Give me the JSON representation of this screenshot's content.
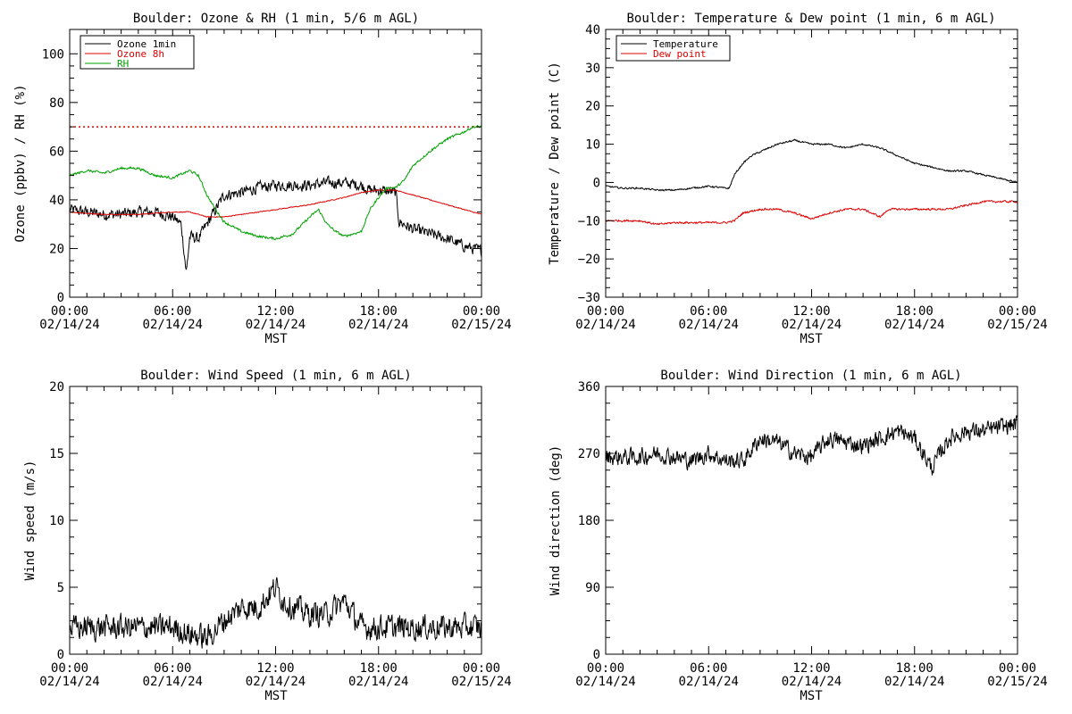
{
  "figure": {
    "x_tick_labels": [
      {
        "time": "00:00",
        "date": "02/14/24"
      },
      {
        "time": "06:00",
        "date": "02/14/24"
      },
      {
        "time": "12:00",
        "date": "02/14/24"
      },
      {
        "time": "18:00",
        "date": "02/14/24"
      },
      {
        "time": "00:00",
        "date": "02/15/24"
      }
    ],
    "x_axis_label": "MST"
  },
  "chart_data": [
    {
      "type": "line",
      "title": "Boulder: Ozone & RH (1 min, 5/6 m AGL)",
      "xlabel": "MST",
      "ylabel": "Ozone (ppbv) / RH (%)",
      "xlim_hours": [
        0,
        24
      ],
      "ylim": [
        0,
        110
      ],
      "yticks": [
        0,
        20,
        40,
        60,
        80,
        100
      ],
      "legend_position": "top-left",
      "reference_line": {
        "y": 70,
        "color": "#dd0000",
        "style": "dotted"
      },
      "series": [
        {
          "name": "Ozone 1min",
          "color": "#000000",
          "noise": 3.2,
          "points": [
            [
              0,
              36
            ],
            [
              1,
              35
            ],
            [
              2,
              34
            ],
            [
              3,
              34
            ],
            [
              4,
              35
            ],
            [
              5,
              35
            ],
            [
              6,
              33
            ],
            [
              6.5,
              30
            ],
            [
              6.8,
              10
            ],
            [
              7,
              25
            ],
            [
              7.5,
              24
            ],
            [
              8,
              30
            ],
            [
              8.5,
              36
            ],
            [
              9,
              42
            ],
            [
              10,
              43
            ],
            [
              11,
              45
            ],
            [
              12,
              46
            ],
            [
              13,
              46
            ],
            [
              14,
              46
            ],
            [
              15,
              47
            ],
            [
              16,
              47
            ],
            [
              17,
              46
            ],
            [
              17.5,
              44
            ],
            [
              18,
              44
            ],
            [
              19,
              43
            ],
            [
              19.2,
              31
            ],
            [
              20,
              28
            ],
            [
              21,
              26
            ],
            [
              22,
              24
            ],
            [
              23,
              21
            ],
            [
              24,
              19
            ]
          ]
        },
        {
          "name": "Ozone 8h",
          "color": "#dd0000",
          "noise": 0.25,
          "points": [
            [
              0,
              35
            ],
            [
              2,
              34
            ],
            [
              4,
              34
            ],
            [
              6,
              35
            ],
            [
              7,
              35
            ],
            [
              8,
              33
            ],
            [
              9,
              33
            ],
            [
              10,
              34
            ],
            [
              12,
              36
            ],
            [
              14,
              38
            ],
            [
              16,
              41
            ],
            [
              17,
              43
            ],
            [
              18,
              44
            ],
            [
              19,
              44
            ],
            [
              20,
              42
            ],
            [
              21,
              40
            ],
            [
              22,
              38
            ],
            [
              23,
              36
            ],
            [
              24,
              34
            ]
          ]
        },
        {
          "name": "RH",
          "color": "#00a000",
          "noise": 0.7,
          "points": [
            [
              0,
              50
            ],
            [
              1,
              52
            ],
            [
              2,
              51
            ],
            [
              3,
              53
            ],
            [
              4,
              53
            ],
            [
              5,
              50
            ],
            [
              6,
              49
            ],
            [
              7,
              52
            ],
            [
              7.5,
              50
            ],
            [
              8,
              42
            ],
            [
              8.5,
              36
            ],
            [
              9,
              31
            ],
            [
              10,
              27
            ],
            [
              11,
              25
            ],
            [
              12,
              24
            ],
            [
              13,
              26
            ],
            [
              14,
              33
            ],
            [
              14.5,
              36
            ],
            [
              15,
              30
            ],
            [
              15.5,
              27
            ],
            [
              16,
              25
            ],
            [
              17,
              27
            ],
            [
              17.5,
              36
            ],
            [
              18,
              41
            ],
            [
              18.5,
              45
            ],
            [
              19,
              45
            ],
            [
              19.5,
              48
            ],
            [
              20,
              54
            ],
            [
              21,
              60
            ],
            [
              22,
              65
            ],
            [
              23,
              68
            ],
            [
              23.5,
              70
            ],
            [
              24,
              70
            ]
          ]
        }
      ]
    },
    {
      "type": "line",
      "title": "Boulder: Temperature & Dew point (1 min, 6 m AGL)",
      "xlabel": "MST",
      "ylabel": "Temperature / Dew point (C)",
      "xlim_hours": [
        0,
        24
      ],
      "ylim": [
        -30,
        40
      ],
      "yticks": [
        -30,
        -20,
        -10,
        0,
        10,
        20,
        30,
        40
      ],
      "legend_position": "top-left",
      "series": [
        {
          "name": "Temperature",
          "color": "#000000",
          "noise": 0.3,
          "points": [
            [
              0,
              -1
            ],
            [
              1,
              -1.5
            ],
            [
              2,
              -1.5
            ],
            [
              3,
              -2
            ],
            [
              4,
              -2
            ],
            [
              5,
              -1.5
            ],
            [
              6,
              -1
            ],
            [
              7,
              -1.5
            ],
            [
              7.2,
              -1.5
            ],
            [
              7.5,
              2
            ],
            [
              8,
              5
            ],
            [
              8.5,
              7
            ],
            [
              9,
              8
            ],
            [
              10,
              10
            ],
            [
              11,
              11
            ],
            [
              12,
              10
            ],
            [
              13,
              10
            ],
            [
              14,
              9
            ],
            [
              15,
              10
            ],
            [
              16,
              9
            ],
            [
              17,
              7
            ],
            [
              18,
              5
            ],
            [
              19,
              4
            ],
            [
              20,
              3
            ],
            [
              21,
              3
            ],
            [
              22,
              2
            ],
            [
              23,
              1
            ],
            [
              24,
              0
            ]
          ]
        },
        {
          "name": "Dew point",
          "color": "#dd0000",
          "noise": 0.35,
          "points": [
            [
              0,
              -10
            ],
            [
              1,
              -10
            ],
            [
              2,
              -10
            ],
            [
              3,
              -11
            ],
            [
              4,
              -10.5
            ],
            [
              5,
              -10.5
            ],
            [
              6,
              -10.5
            ],
            [
              7,
              -10.5
            ],
            [
              7.5,
              -10
            ],
            [
              8,
              -8
            ],
            [
              9,
              -7
            ],
            [
              10,
              -7
            ],
            [
              11,
              -8
            ],
            [
              12,
              -9.5
            ],
            [
              13,
              -8
            ],
            [
              14,
              -7
            ],
            [
              15,
              -7
            ],
            [
              16,
              -9
            ],
            [
              16.5,
              -7
            ],
            [
              17,
              -7
            ],
            [
              18,
              -7
            ],
            [
              19,
              -7
            ],
            [
              20,
              -7
            ],
            [
              21,
              -6
            ],
            [
              22,
              -5
            ],
            [
              23,
              -5
            ],
            [
              24,
              -5
            ]
          ]
        }
      ]
    },
    {
      "type": "line",
      "title": "Boulder: Wind Speed (1 min, 6 m AGL)",
      "xlabel": "MST",
      "ylabel": "Wind speed (m/s)",
      "xlim_hours": [
        0,
        24
      ],
      "ylim": [
        0,
        20
      ],
      "yticks": [
        0,
        5,
        10,
        15,
        20
      ],
      "series": [
        {
          "name": "",
          "color": "#000000",
          "noise": 1.3,
          "points": [
            [
              0,
              2
            ],
            [
              2,
              2
            ],
            [
              4,
              2
            ],
            [
              6,
              2
            ],
            [
              7,
              1.5
            ],
            [
              8,
              1.2
            ],
            [
              9,
              2.5
            ],
            [
              10,
              3.5
            ],
            [
              11,
              3.5
            ],
            [
              12,
              5
            ],
            [
              12.5,
              4
            ],
            [
              13,
              3.5
            ],
            [
              14,
              3
            ],
            [
              15,
              3
            ],
            [
              16,
              4
            ],
            [
              17,
              2
            ],
            [
              18,
              2
            ],
            [
              20,
              2
            ],
            [
              22,
              2
            ],
            [
              24,
              2
            ]
          ]
        }
      ]
    },
    {
      "type": "line",
      "title": "Boulder: Wind Direction (1 min, 6 m AGL)",
      "xlabel": "MST",
      "ylabel": "Wind direction (deg)",
      "xlim_hours": [
        0,
        24
      ],
      "ylim": [
        0,
        360
      ],
      "yticks": [
        0,
        90,
        180,
        270,
        360
      ],
      "series": [
        {
          "name": "",
          "color": "#000000",
          "noise": 16,
          "points": [
            [
              0,
              265
            ],
            [
              2,
              265
            ],
            [
              3,
              270
            ],
            [
              4,
              265
            ],
            [
              5,
              260
            ],
            [
              6,
              270
            ],
            [
              7,
              260
            ],
            [
              8,
              260
            ],
            [
              9,
              290
            ],
            [
              10,
              285
            ],
            [
              11,
              270
            ],
            [
              12,
              265
            ],
            [
              13,
              290
            ],
            [
              14,
              285
            ],
            [
              15,
              280
            ],
            [
              16,
              290
            ],
            [
              17,
              300
            ],
            [
              18,
              290
            ],
            [
              18.5,
              270
            ],
            [
              19,
              250
            ],
            [
              20,
              290
            ],
            [
              21,
              300
            ],
            [
              22,
              300
            ],
            [
              23,
              305
            ],
            [
              24,
              310
            ]
          ]
        }
      ]
    }
  ]
}
